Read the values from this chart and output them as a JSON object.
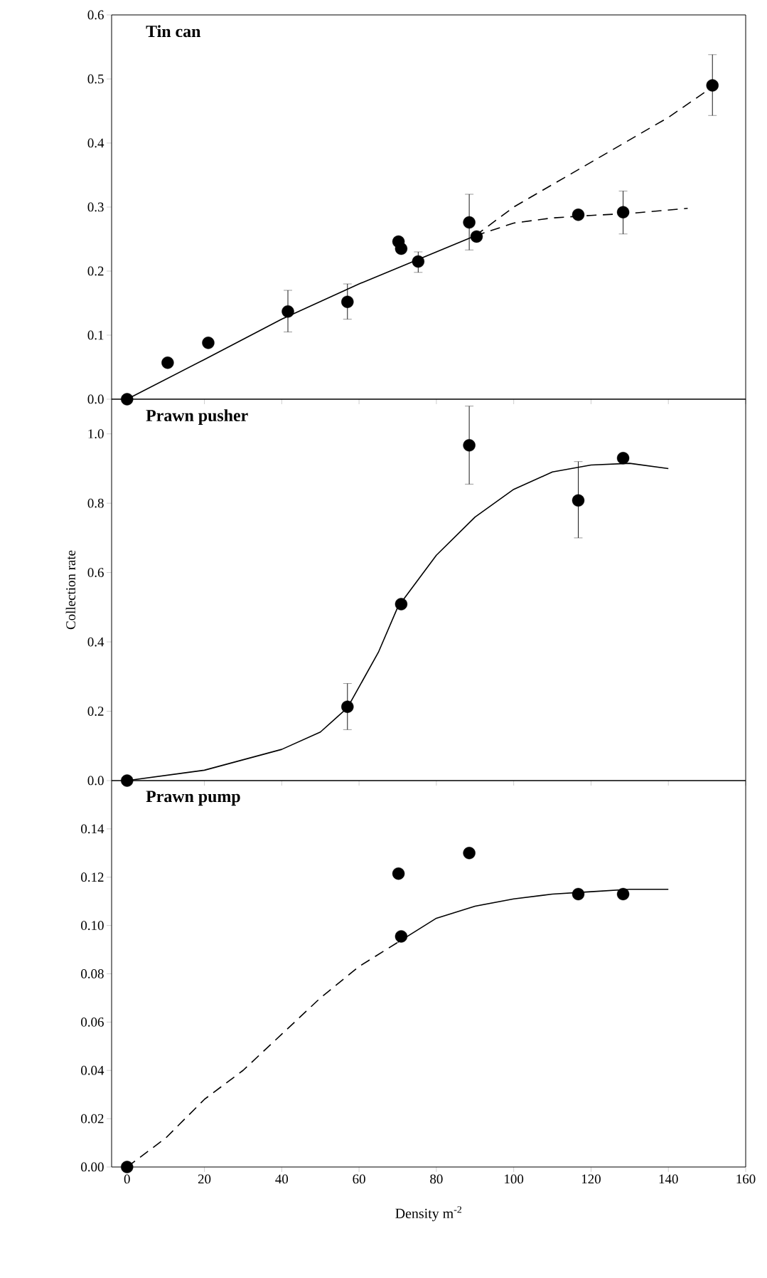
{
  "chart_data": [
    {
      "type": "scatter",
      "title": "Tin can",
      "xlim": [
        -4,
        160
      ],
      "ylim": [
        0,
        0.6
      ],
      "tick_labels": "y",
      "xticks": [
        0,
        20,
        40,
        60,
        80,
        100,
        120,
        140,
        160
      ],
      "yticks": [
        {
          "value": 0,
          "label": "0.0"
        },
        {
          "value": 0.1,
          "label": "0.1"
        },
        {
          "value": 0.2,
          "label": "0.2"
        },
        {
          "value": 0.3,
          "label": "0.3"
        },
        {
          "value": 0.4,
          "label": "0.4"
        },
        {
          "value": 0.5,
          "label": "0.5"
        },
        {
          "value": 0.6,
          "label": "0.6"
        }
      ],
      "series": [
        {
          "marker": "circle",
          "color": "#000000",
          "x": [
            0,
            10.5,
            21,
            41.6,
            57,
            70.2,
            70.9,
            75.3,
            88.5,
            90.4,
            116.7,
            128.3,
            151.4
          ],
          "values": [
            0,
            0.057,
            0.088,
            0.137,
            0.152,
            0.246,
            0.235,
            0.215,
            0.276,
            0.254,
            0.288,
            0.292,
            0.49
          ],
          "errors": [
            null,
            null,
            null,
            [
              0.105,
              0.17
            ],
            [
              0.125,
              0.18
            ],
            null,
            null,
            [
              0.198,
              0.23
            ],
            [
              0.233,
              0.32
            ],
            null,
            null,
            [
              0.258,
              0.325
            ],
            [
              0.443,
              0.538
            ]
          ]
        },
        {
          "type": "line",
          "line_style": "solid",
          "color": "#000000",
          "x": [
            0,
            20,
            40,
            60,
            80,
            90
          ],
          "values": [
            0,
            0.062,
            0.125,
            0.18,
            0.23,
            0.255
          ]
        },
        {
          "type": "line",
          "line_style": "dashed",
          "color": "#000000",
          "x": [
            90,
            100,
            120,
            140,
            152
          ],
          "values": [
            0.255,
            0.3,
            0.37,
            0.44,
            0.49
          ]
        },
        {
          "type": "line",
          "line_style": "dashed",
          "color": "#000000",
          "x": [
            90,
            100,
            110,
            120,
            130,
            145
          ],
          "values": [
            0.255,
            0.275,
            0.283,
            0.287,
            0.29,
            0.298
          ]
        }
      ]
    },
    {
      "type": "scatter",
      "title": "Prawn pusher",
      "ylabel": "Collection rate",
      "xlim": [
        -4,
        160
      ],
      "ylim": [
        0,
        1.1
      ],
      "tick_labels": "y",
      "xticks": [
        0,
        20,
        40,
        60,
        80,
        100,
        120,
        140,
        160
      ],
      "yticks": [
        {
          "value": 0,
          "label": "0.0"
        },
        {
          "value": 0.2,
          "label": "0.2"
        },
        {
          "value": 0.4,
          "label": "0.4"
        },
        {
          "value": 0.6,
          "label": "0.6"
        },
        {
          "value": 0.8,
          "label": "0.8"
        },
        {
          "value": 1.0,
          "label": "1.0"
        }
      ],
      "series": [
        {
          "marker": "circle",
          "color": "#000000",
          "x": [
            0,
            57,
            70.9,
            88.5,
            116.7,
            128.3
          ],
          "values": [
            0,
            0.213,
            0.509,
            0.967,
            0.808,
            0.93
          ],
          "errors": [
            null,
            [
              0.147,
              0.28
            ],
            null,
            [
              0.855,
              1.08
            ],
            [
              0.7,
              0.92
            ],
            null
          ]
        },
        {
          "type": "line",
          "line_style": "solid",
          "color": "#000000",
          "x": [
            0,
            20,
            40,
            50,
            57,
            65,
            70,
            80,
            90,
            100,
            110,
            120,
            130,
            140
          ],
          "values": [
            0,
            0.03,
            0.09,
            0.14,
            0.21,
            0.37,
            0.5,
            0.65,
            0.76,
            0.84,
            0.89,
            0.91,
            0.915,
            0.9
          ]
        }
      ]
    },
    {
      "type": "scatter",
      "title": "Prawn pump",
      "xlabel": "Density m$^{-2}$",
      "xlim": [
        -4,
        160
      ],
      "ylim": [
        0,
        0.16
      ],
      "xticks": [
        0,
        20,
        40,
        60,
        80,
        100,
        120,
        140,
        160
      ],
      "yticks": [
        {
          "value": 0,
          "label": "0.00"
        },
        {
          "value": 0.02,
          "label": "0.02"
        },
        {
          "value": 0.04,
          "label": "0.04"
        },
        {
          "value": 0.06,
          "label": "0.06"
        },
        {
          "value": 0.08,
          "label": "0.08"
        },
        {
          "value": 0.1,
          "label": "0.10"
        },
        {
          "value": 0.12,
          "label": "0.12"
        },
        {
          "value": 0.14,
          "label": "0.14"
        }
      ],
      "series": [
        {
          "marker": "circle",
          "color": "#000000",
          "x": [
            0,
            70.2,
            70.9,
            88.5,
            116.7,
            128.3
          ],
          "values": [
            0,
            0.1215,
            0.0955,
            0.13,
            0.113,
            0.113
          ]
        },
        {
          "type": "line",
          "line_style": "dashed",
          "color": "#000000",
          "x": [
            0,
            10,
            20,
            30,
            40,
            50,
            60,
            70
          ],
          "values": [
            0,
            0.012,
            0.028,
            0.04,
            0.055,
            0.07,
            0.083,
            0.093
          ]
        },
        {
          "type": "line",
          "line_style": "solid",
          "color": "#000000",
          "x": [
            70,
            80,
            90,
            100,
            110,
            120,
            130,
            140
          ],
          "values": [
            0.093,
            0.103,
            0.108,
            0.111,
            0.113,
            0.114,
            0.115,
            0.115
          ]
        }
      ]
    }
  ]
}
